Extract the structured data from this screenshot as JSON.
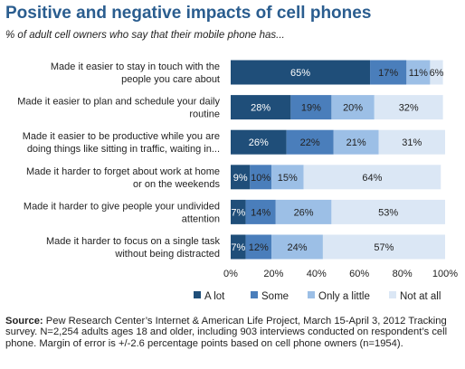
{
  "title": "Positive and negative impacts of cell phones",
  "subtitle": "% of adult cell owners who say that their mobile phone has...",
  "source": {
    "label": "Source:",
    "text": "Pew Research Center’s Internet & American Life Project, March 15-April 3, 2012 Tracking survey. N=2,254 adults ages 18 and older, including 903 interviews conducted on respondent’s cell phone. Margin of error is +/-2.6 percentage points based on cell phone owners (n=1954)."
  },
  "colors": {
    "a_lot": "#1f4e79",
    "some": "#4a7ebb",
    "only_a_little": "#9cbfe6",
    "not_at_all": "#dbe7f5",
    "title": "#2a5d8f"
  },
  "chart_data": {
    "type": "bar",
    "orientation": "horizontal",
    "stacked": true,
    "categories": [
      [
        "Made it easier to stay in touch with the",
        "people you care about"
      ],
      [
        "Made it easier to plan and schedule your daily",
        "routine"
      ],
      [
        "Made it easier to be productive while you are",
        "doing things like sitting in traffic, waiting in..."
      ],
      [
        "Made it harder to forget about work at home",
        "or on the weekends"
      ],
      [
        "Made it harder to give people your undivided",
        "attention"
      ],
      [
        "Made it harder to focus on a single task",
        "without being distracted"
      ]
    ],
    "series": [
      {
        "name": "A lot",
        "values": [
          65,
          28,
          26,
          9,
          7,
          7
        ]
      },
      {
        "name": "Some",
        "values": [
          17,
          19,
          22,
          10,
          14,
          12
        ]
      },
      {
        "name": "Only a little",
        "values": [
          11,
          20,
          21,
          15,
          26,
          24
        ]
      },
      {
        "name": "Not at all",
        "values": [
          6,
          32,
          31,
          64,
          53,
          57
        ]
      }
    ],
    "xlim": [
      0,
      100
    ],
    "xticks": [
      "0%",
      "20%",
      "40%",
      "60%",
      "80%",
      "100%"
    ],
    "legend_position": "bottom",
    "grid": false
  }
}
